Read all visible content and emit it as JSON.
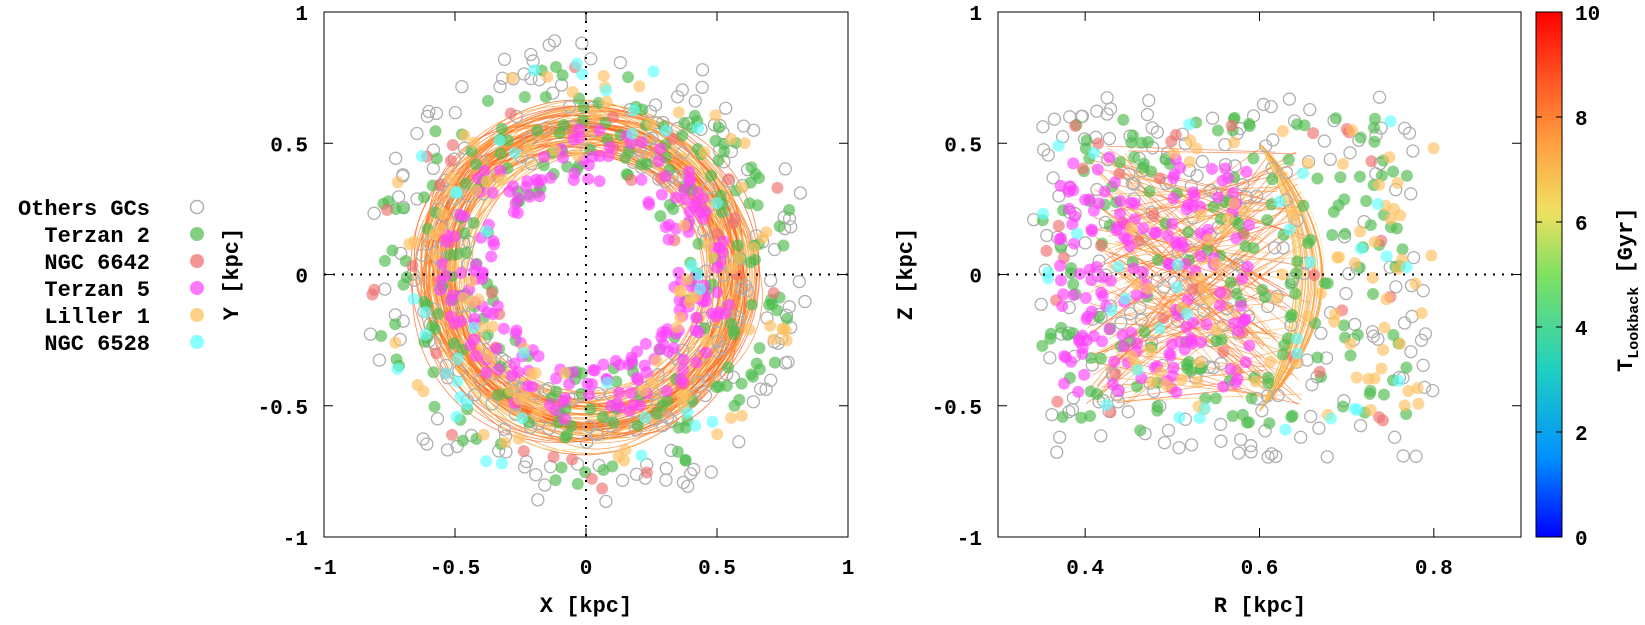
{
  "figure": {
    "legend_title": "Others GCs",
    "colorbar_label_main": "T",
    "colorbar_label_sub": "Lookback",
    "colorbar_label_unit": "[Gyr]"
  },
  "chart_data": [
    {
      "type": "scatter",
      "panel": "left",
      "xlabel": "X [kpc]",
      "ylabel": "Y [kpc]",
      "xlim": [
        -1,
        1
      ],
      "ylim": [
        -1,
        1
      ],
      "xticks": [
        "-1",
        "-0.5",
        "0",
        "0.5",
        "1"
      ],
      "yticks": [
        "-1",
        "-0.5",
        "0",
        "0.5",
        "1"
      ],
      "xtick_values": [
        -1,
        -0.5,
        0,
        0.5,
        1
      ],
      "ytick_values": [
        -1,
        -0.5,
        0,
        0.5,
        1
      ],
      "zero_lines": true,
      "orbit_lines": "orange-red orbital traces colored by lookback time (ring between r = 0.4 and 0.7 kpc)",
      "distribution": "annulus",
      "r_inner": 0.36,
      "r_outer": 0.9
    },
    {
      "type": "scatter",
      "panel": "right",
      "xlabel": "R [kpc]",
      "ylabel": "Z [kpc]",
      "xlim": [
        0.3,
        0.9
      ],
      "ylim": [
        -1,
        1
      ],
      "xticks": [
        "0.4",
        "0.6",
        "0.8"
      ],
      "yticks": [
        "-1",
        "-0.5",
        "0",
        "0.5",
        "1"
      ],
      "xtick_values": [
        0.4,
        0.6,
        0.8
      ],
      "ytick_values": [
        -1,
        -0.5,
        0,
        0.5,
        1
      ],
      "zero_lines": true,
      "orbit_lines": "orange-red orbital traces between R = 0.40 and 0.66 kpc, |Z| < 0.5 kpc",
      "distribution": "box",
      "r_range": [
        0.34,
        0.8
      ],
      "z_range": [
        -0.7,
        0.68
      ]
    }
  ],
  "legend": [
    {
      "name": "Others GCs",
      "color": "#b0b0b0",
      "style": "open"
    },
    {
      "name": "Terzan 2",
      "color": "#4dbb4d",
      "style": "filled"
    },
    {
      "name": "NGC 6642",
      "color": "#f07070",
      "style": "filled"
    },
    {
      "name": "Terzan 5",
      "color": "#ff40ff",
      "style": "filled"
    },
    {
      "name": "Liller 1",
      "color": "#ffc060",
      "style": "filled"
    },
    {
      "name": "NGC 6528",
      "color": "#60ffff",
      "style": "filled"
    }
  ],
  "colorbar": {
    "ticks": [
      "0",
      "2",
      "4",
      "6",
      "8",
      "10"
    ],
    "tick_values": [
      0,
      2,
      4,
      6,
      8,
      10
    ],
    "range": [
      0,
      10
    ],
    "stops": [
      "#0000ff",
      "#0090ff",
      "#20d0c0",
      "#80e060",
      "#f0e060",
      "#ffa040",
      "#ff5020",
      "#ff0000"
    ]
  }
}
